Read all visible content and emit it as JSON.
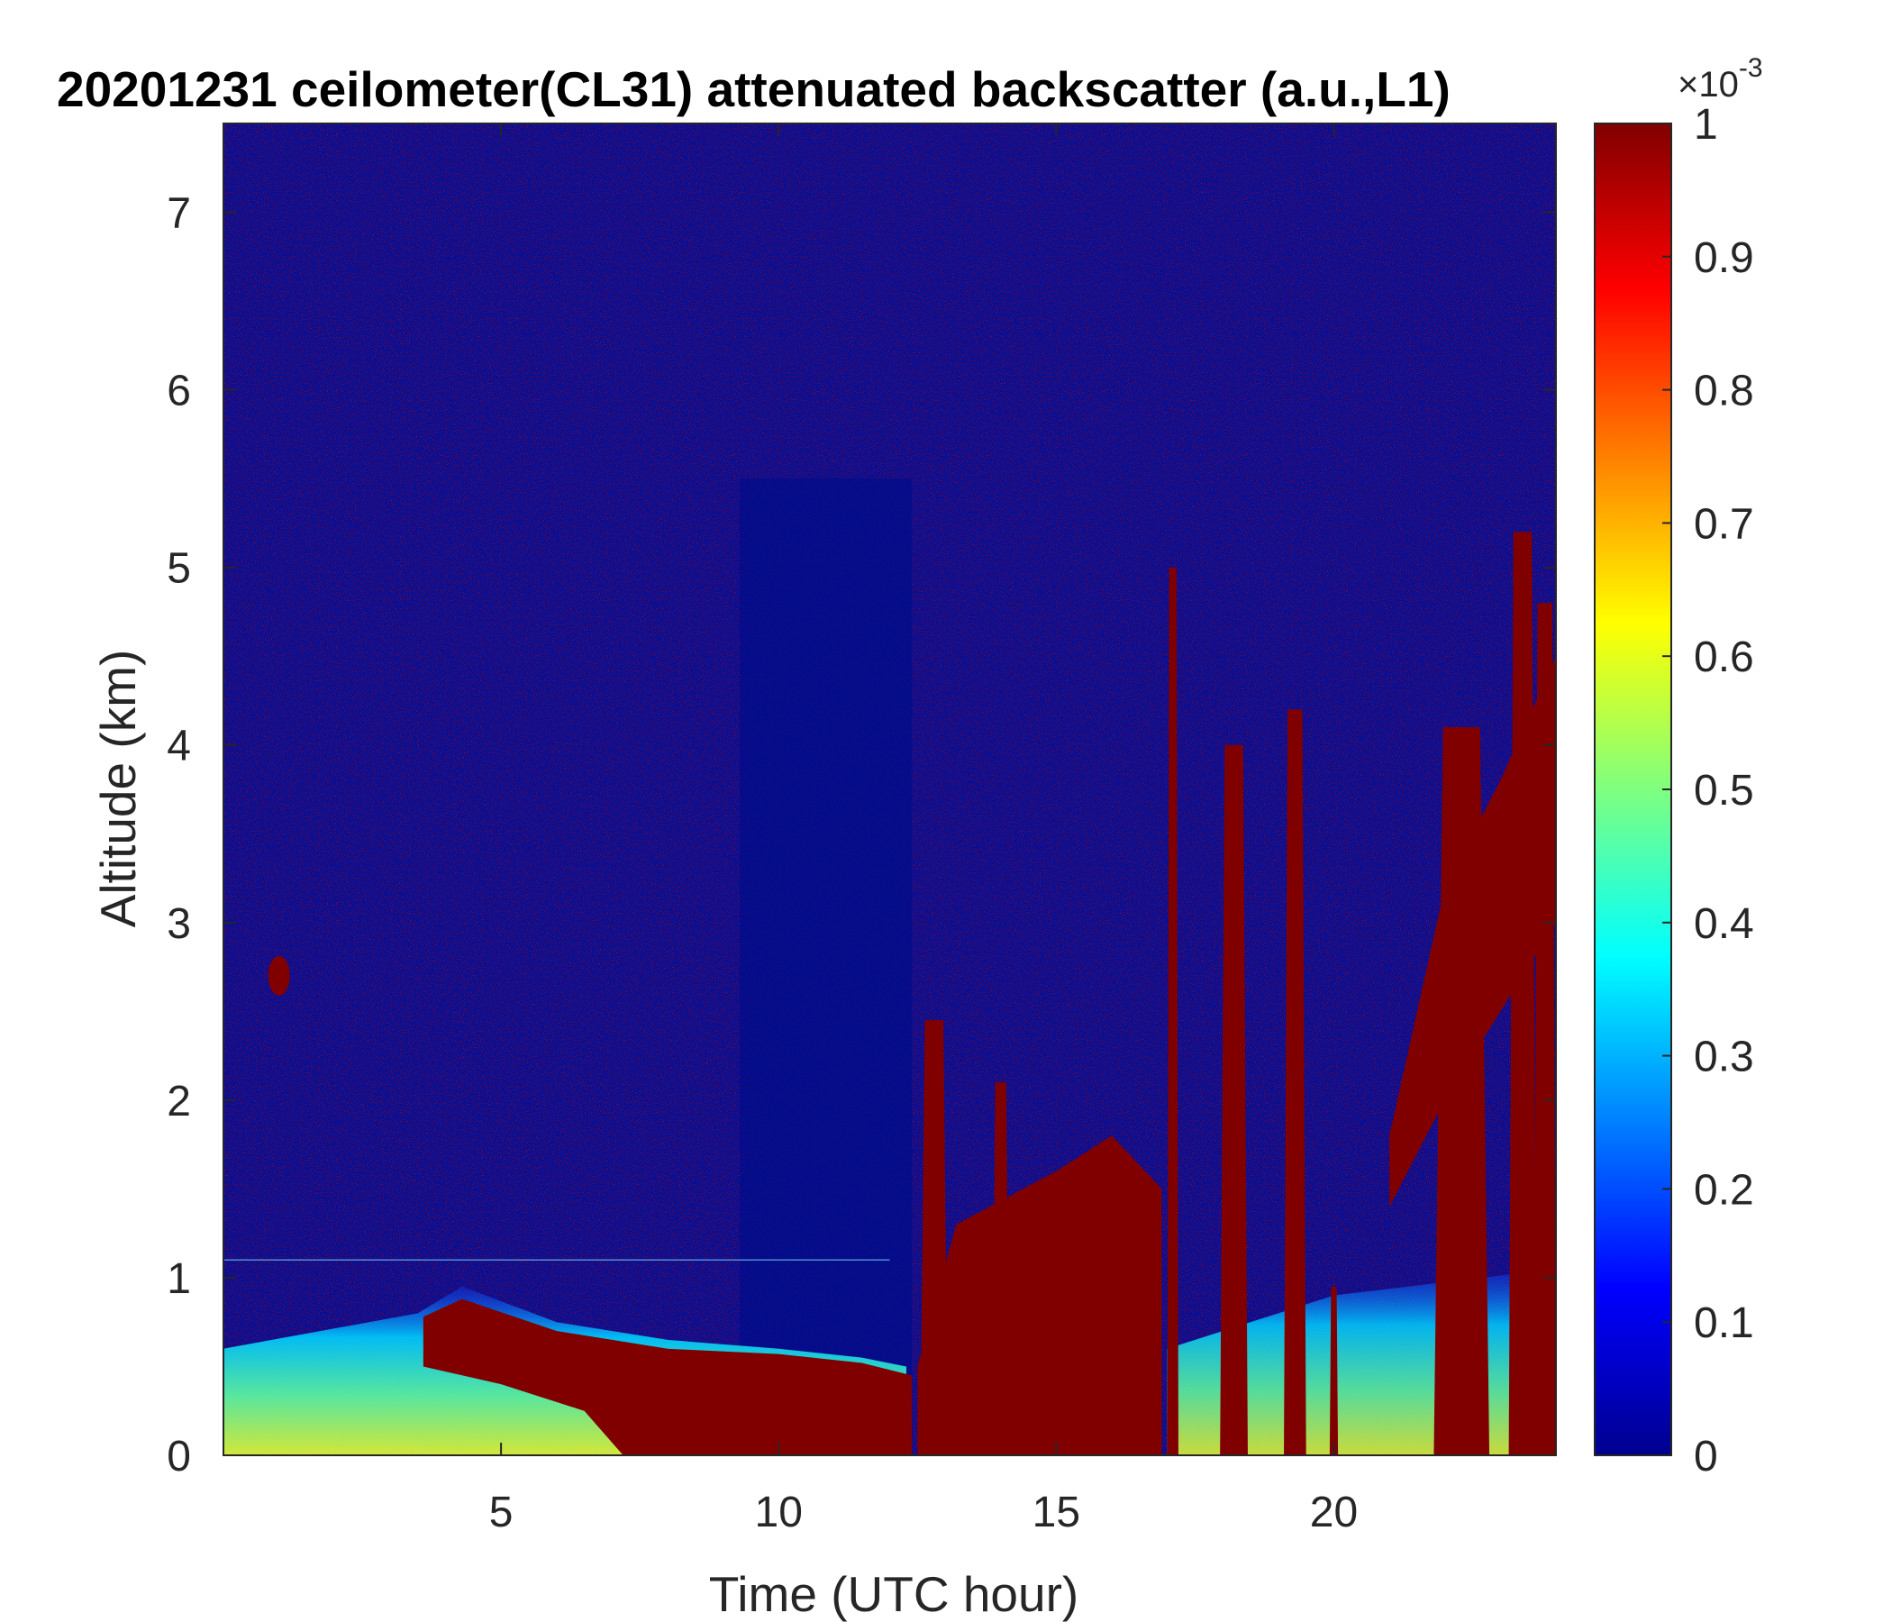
{
  "chart_data": {
    "type": "heatmap",
    "title": "20201231 ceilometer(CL31) attenuated backscatter (a.u.,L1)",
    "xlabel": "Time (UTC hour)",
    "ylabel": "Altitude (km)",
    "xlim": [
      0,
      24
    ],
    "ylim": [
      0,
      7.5
    ],
    "xticks": [
      5,
      10,
      15,
      20
    ],
    "yticks": [
      0,
      1,
      2,
      3,
      4,
      5,
      6,
      7
    ],
    "colorbar": {
      "colormap": "jet",
      "range": [
        0,
        1
      ],
      "ticks": [
        "0",
        "0.1",
        "0.2",
        "0.3",
        "0.4",
        "0.5",
        "0.6",
        "0.7",
        "0.8",
        "0.9",
        "1"
      ],
      "exponent_base": "×10",
      "exponent_power": "-3"
    },
    "features": {
      "boundary_layer_top_km": [
        [
          0,
          0.6
        ],
        [
          3.5,
          0.8
        ],
        [
          4.3,
          0.95
        ],
        [
          6,
          0.75
        ],
        [
          8,
          0.65
        ],
        [
          10,
          0.6
        ],
        [
          11.5,
          0.55
        ],
        [
          12.3,
          0.5
        ]
      ],
      "boundary_layer_core_km": [
        [
          0,
          0.45
        ],
        [
          3.6,
          0.55
        ],
        [
          5,
          0.45
        ],
        [
          6.5,
          0.3
        ],
        [
          7.5,
          0.15
        ]
      ],
      "dense_aerosol_blocks": [
        {
          "t0": 12.5,
          "t1": 16.9,
          "top_km": 1.8
        },
        {
          "t0": 21.0,
          "t1": 24.0,
          "top_km": 4.5
        }
      ],
      "plumes": [
        {
          "t": 12.8,
          "width_h": 0.5,
          "top_km": 2.45
        },
        {
          "t": 14.0,
          "width_h": 0.3,
          "top_km": 2.1
        },
        {
          "t": 17.1,
          "width_h": 0.2,
          "top_km": 5.0
        },
        {
          "t": 18.2,
          "width_h": 0.5,
          "top_km": 4.0
        },
        {
          "t": 19.3,
          "width_h": 0.4,
          "top_km": 4.2
        },
        {
          "t": 20.0,
          "width_h": 0.15,
          "top_km": 0.95
        },
        {
          "t": 22.3,
          "width_h": 1.0,
          "top_km": 4.1
        },
        {
          "t": 23.4,
          "width_h": 0.5,
          "top_km": 5.2
        },
        {
          "t": 23.8,
          "width_h": 0.4,
          "top_km": 4.8
        }
      ],
      "clean_column": {
        "t0": 9.3,
        "t1": 12.4
      },
      "aerosol_blob": {
        "t": 1.0,
        "alt_km": 2.7
      },
      "faint_layer_km": 1.1
    }
  }
}
